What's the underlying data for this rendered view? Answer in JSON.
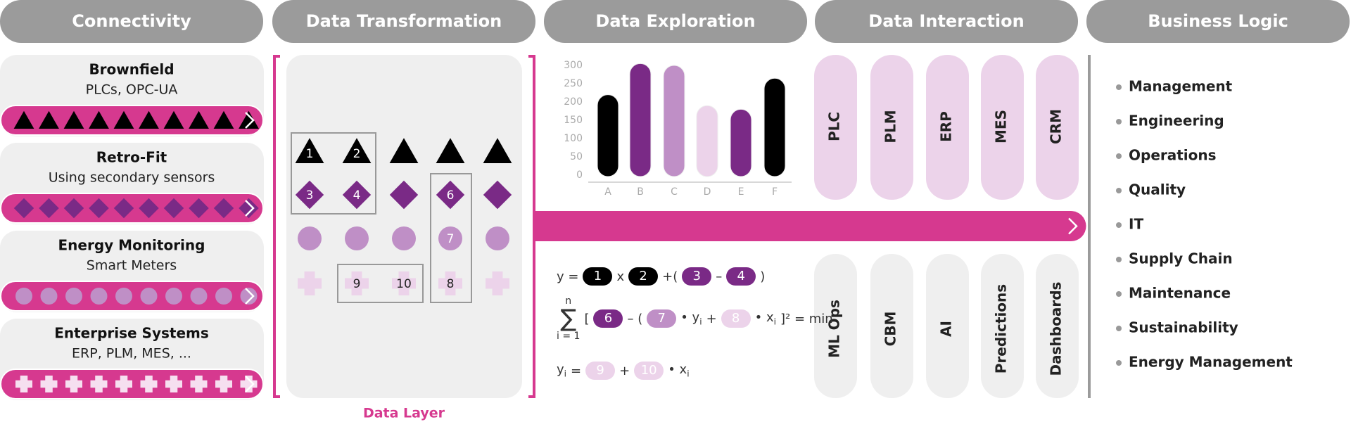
{
  "headers": [
    "Connectivity",
    "Data Transformation",
    "Data Exploration",
    "Data Interaction",
    "Business Logic"
  ],
  "connectivity": [
    {
      "title": "Brownfield",
      "subtitle": "PLCs, OPC-UA"
    },
    {
      "title": "Retro-Fit",
      "subtitle": "Using secondary sensors"
    },
    {
      "title": "Energy Monitoring",
      "subtitle": "Smart Meters"
    },
    {
      "title": "Enterprise Systems",
      "subtitle": "ERP, PLM, MES, ..."
    }
  ],
  "data_layer": {
    "label": "Data Layer",
    "items": [
      "1",
      "2",
      "3",
      "4",
      "6",
      "7",
      "9",
      "10",
      "8"
    ]
  },
  "exploration": {
    "chart": {
      "type": "bar",
      "categories": [
        "A",
        "B",
        "C",
        "D",
        "E",
        "F"
      ],
      "values": [
        220,
        305,
        300,
        190,
        180,
        265
      ],
      "colors": [
        "#000000",
        "#7a2a86",
        "#bf8fc6",
        "#ecd3ea",
        "#7a2a86",
        "#000000"
      ],
      "ylim": [
        0,
        300
      ],
      "yticks": [
        0,
        50,
        100,
        150,
        200,
        250,
        300
      ]
    },
    "formulas": [
      [
        "y =",
        "1",
        "x",
        "2",
        "+(",
        "3",
        "–",
        "4",
        ")"
      ],
      [
        "n",
        "∑",
        "i = 1",
        "[",
        "6",
        "– (",
        "7",
        "• y",
        "i",
        "+",
        "8",
        "• x",
        "i",
        "]² = min"
      ],
      [
        "y",
        "i",
        "=",
        "9",
        "+",
        "10",
        "• x",
        "i"
      ]
    ]
  },
  "interaction": {
    "top": [
      "PLC",
      "PLM",
      "ERP",
      "MES",
      "CRM"
    ],
    "bottom": [
      "ML Ops",
      "CBM",
      "AI",
      "Predictions",
      "Dashboards"
    ]
  },
  "business_logic": [
    "Management",
    "Engineering",
    "Operations",
    "Quality",
    "IT",
    "Supply Chain",
    "Maintenance",
    "Sustainability",
    "Energy Management"
  ]
}
